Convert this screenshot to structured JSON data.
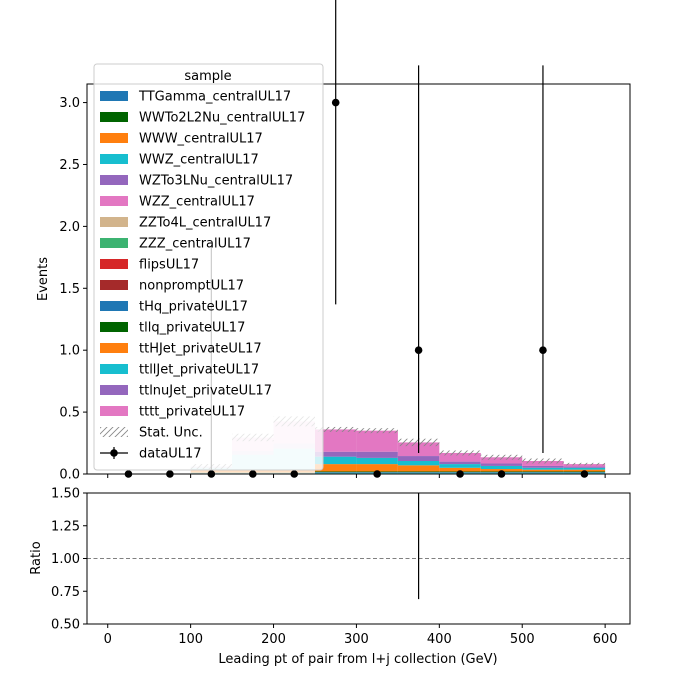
{
  "chart_data": {
    "type": "bar",
    "xlabel": "Leading pt of pair from l+j collection (GeV)",
    "ylabel": "Events",
    "ratio_ylabel": "Ratio",
    "xlim": [
      -25,
      630
    ],
    "ylim": [
      0,
      3.15
    ],
    "ratio_ylim": [
      0.5,
      1.5
    ],
    "x_ticks": [
      "0",
      "100",
      "200",
      "300",
      "400",
      "500",
      "600"
    ],
    "y_ticks": [
      "0.0",
      "0.5",
      "1.0",
      "1.5",
      "2.0",
      "2.5",
      "3.0"
    ],
    "ratio_ticks": [
      "0.50",
      "0.75",
      "1.00",
      "1.25",
      "1.50"
    ],
    "ratio_reference": 1.0,
    "bin_edges": [
      0,
      50,
      100,
      150,
      200,
      250,
      300,
      350,
      400,
      450,
      500,
      550,
      600
    ],
    "legend_title": "sample",
    "legend_position": "top-left",
    "series": [
      {
        "name": "TTGamma_centralUL17",
        "color": "#1f77b4",
        "values": [
          0,
          0,
          0,
          0,
          0,
          0,
          0,
          0,
          0,
          0,
          0,
          0
        ]
      },
      {
        "name": "WWTo2L2Nu_centralUL17",
        "color": "#006400",
        "values": [
          0,
          0,
          0,
          0,
          0,
          0,
          0,
          0,
          0,
          0,
          0,
          0
        ]
      },
      {
        "name": "WWW_centralUL17",
        "color": "#ff7f0e",
        "values": [
          0,
          0,
          0.005,
          0.005,
          0.005,
          0.005,
          0.005,
          0.005,
          0.005,
          0.005,
          0.005,
          0.005
        ]
      },
      {
        "name": "WWZ_centralUL17",
        "color": "#17becf",
        "values": [
          0,
          0,
          0.005,
          0.005,
          0.005,
          0.005,
          0.005,
          0.005,
          0.005,
          0.005,
          0.005,
          0.005
        ]
      },
      {
        "name": "WZTo3LNu_centralUL17",
        "color": "#9467bd",
        "values": [
          0,
          0,
          0,
          0,
          0,
          0,
          0,
          0,
          0,
          0,
          0,
          0
        ]
      },
      {
        "name": "WZZ_centralUL17",
        "color": "#e377c2",
        "values": [
          0,
          0,
          0,
          0,
          0,
          0,
          0,
          0,
          0,
          0,
          0,
          0
        ]
      },
      {
        "name": "ZZTo4L_centralUL17",
        "color": "#d2b48c",
        "values": [
          0,
          0,
          0,
          0,
          0,
          0,
          0,
          0,
          0,
          0,
          0,
          0
        ]
      },
      {
        "name": "ZZZ_centralUL17",
        "color": "#3cb371",
        "values": [
          0,
          0,
          0,
          0,
          0,
          0,
          0,
          0,
          0,
          0,
          0,
          0
        ]
      },
      {
        "name": "flipsUL17",
        "color": "#d62728",
        "values": [
          0,
          0,
          0,
          0,
          0,
          0,
          0,
          0,
          0,
          0,
          0,
          0
        ]
      },
      {
        "name": "nonpromptUL17",
        "color": "#a52a2a",
        "values": [
          0,
          0,
          0,
          0,
          0,
          0,
          0,
          0,
          0,
          0,
          0,
          0
        ]
      },
      {
        "name": "tHq_privateUL17",
        "color": "#1f77b4",
        "values": [
          0,
          0,
          0,
          0,
          0,
          0.005,
          0.005,
          0.005,
          0.005,
          0.005,
          0.005,
          0.005
        ]
      },
      {
        "name": "tllq_privateUL17",
        "color": "#006400",
        "values": [
          0,
          0,
          0,
          0,
          0,
          0.005,
          0.005,
          0.005,
          0.005,
          0.005,
          0.005,
          0.005
        ]
      },
      {
        "name": "ttHJet_privateUL17",
        "color": "#ff7f0e",
        "values": [
          0,
          0,
          0.02,
          0.025,
          0.025,
          0.06,
          0.06,
          0.05,
          0.03,
          0.02,
          0.015,
          0.015
        ]
      },
      {
        "name": "ttllJet_privateUL17",
        "color": "#17becf",
        "values": [
          0,
          0,
          0.02,
          0.12,
          0.17,
          0.06,
          0.05,
          0.035,
          0.03,
          0.025,
          0.015,
          0.015
        ]
      },
      {
        "name": "ttlnuJet_privateUL17",
        "color": "#9467bd",
        "values": [
          0,
          0,
          0.01,
          0.03,
          0.04,
          0.04,
          0.05,
          0.04,
          0.02,
          0.02,
          0.015,
          0.01
        ]
      },
      {
        "name": "tttt_privateUL17",
        "color": "#e377c2",
        "values": [
          0,
          0,
          0,
          0.11,
          0.18,
          0.18,
          0.17,
          0.11,
          0.07,
          0.05,
          0.04,
          0.02
        ]
      }
    ],
    "faded_bins": [
      2,
      3,
      4
    ],
    "stat_unc": {
      "name": "Stat. Unc.",
      "values": [
        0,
        0,
        0.02,
        0.03,
        0.04,
        0.02,
        0.02,
        0.03,
        0.02,
        0.02,
        0.02,
        0.01
      ]
    },
    "data": {
      "name": "dataUL17",
      "x": [
        25,
        75,
        125,
        175,
        225,
        275,
        325,
        375,
        425,
        475,
        525,
        575
      ],
      "y": [
        0,
        0,
        0,
        0,
        0,
        3,
        0,
        1,
        0,
        0,
        1,
        0
      ],
      "err_low": [
        0,
        0,
        0,
        0,
        0,
        1.63,
        0,
        0.83,
        0,
        0,
        0.83,
        0
      ],
      "err_high": [
        0,
        0,
        1.84,
        0,
        0,
        2.92,
        0,
        2.3,
        0,
        0,
        2.3,
        0
      ]
    },
    "ratio": {
      "x": [
        375
      ],
      "y": [
        1.0
      ],
      "err_low": [
        0.31
      ],
      "err_high": [
        0.8
      ]
    }
  }
}
